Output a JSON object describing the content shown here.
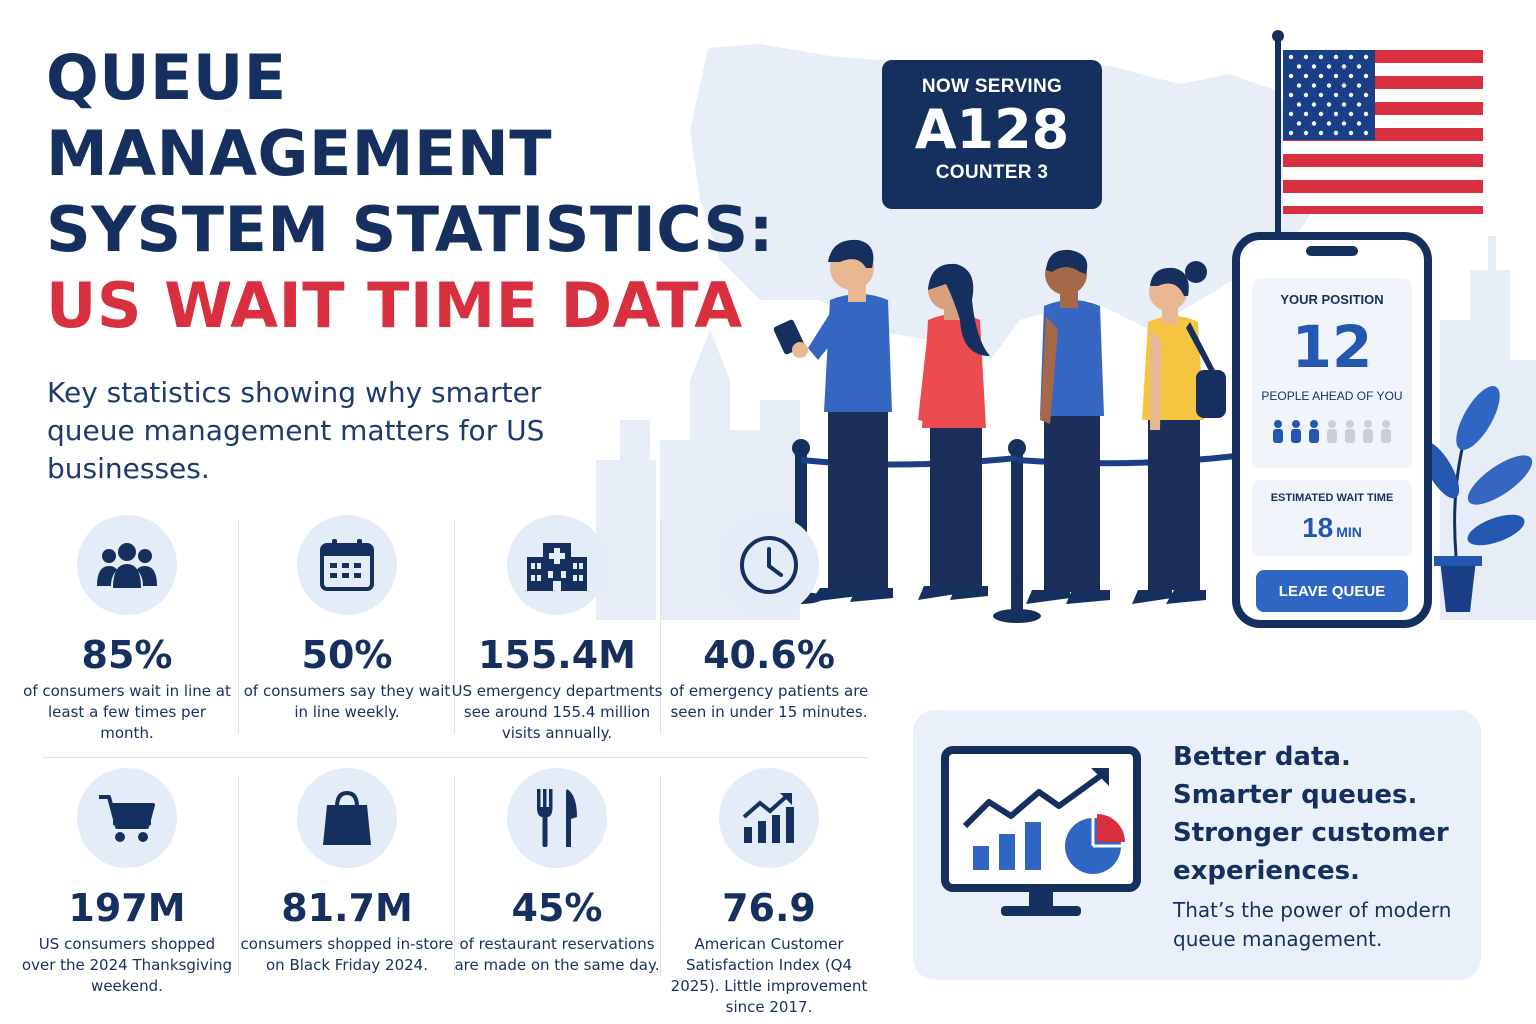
{
  "title": {
    "line1": "QUEUE",
    "line2": "MANAGEMENT",
    "line3": "SYSTEM STATISTICS:",
    "line4": "US WAIT TIME DATA"
  },
  "subtitle": "Key statistics showing why smarter queue management matters for US businesses.",
  "colors": {
    "navy": "#15305f",
    "accent_red": "#d9303f",
    "accent_blue": "#2f66c4",
    "light_blue": "#e4ecf8",
    "yellow": "#f5c542"
  },
  "stats": [
    {
      "icon": "people-group-icon",
      "value": "85%",
      "desc": "of consumers wait in line at least a few times per month."
    },
    {
      "icon": "calendar-icon",
      "value": "50%",
      "desc": "of consumers say they wait in line weekly."
    },
    {
      "icon": "hospital-icon",
      "value": "155.4M",
      "desc": "US emergency departments see around 155.4 million visits annually."
    },
    {
      "icon": "clock-icon",
      "value": "40.6%",
      "desc": "of emergency patients are seen in under 15 minutes."
    },
    {
      "icon": "shopping-cart-icon",
      "value": "197M",
      "desc": "US consumers shopped over the 2024 Thanksgiving weekend."
    },
    {
      "icon": "shopping-bag-icon",
      "value": "81.7M",
      "desc": "consumers shopped in-store on Black Friday 2024."
    },
    {
      "icon": "fork-knife-icon",
      "value": "45%",
      "desc": "of restaurant reservations are made on the same day."
    },
    {
      "icon": "growth-chart-icon",
      "value": "76.9",
      "desc": "American Customer Satisfaction Index (Q4 2025). Little improvement since 2017."
    }
  ],
  "now_serving": {
    "label": "NOW SERVING",
    "number": "A128",
    "counter": "COUNTER 3"
  },
  "phone": {
    "position_label": "YOUR POSITION",
    "position_number": "12",
    "people_ahead": "PEOPLE AHEAD OF YOU",
    "wait_label": "ESTIMATED WAIT TIME",
    "wait_value": "18",
    "wait_unit": "MIN",
    "leave_button": "LEAVE QUEUE"
  },
  "promo": {
    "line1": "Better data.",
    "line2": "Smarter queues.",
    "line3": "Stronger customer",
    "line4": "experiences.",
    "note": "That’s the power of modern queue management."
  }
}
